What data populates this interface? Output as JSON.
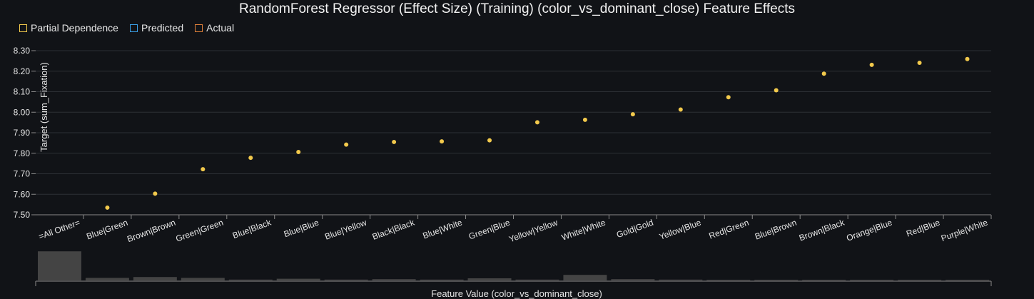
{
  "title": "RandomForest Regressor (Effect Size) (Training) (color_vs_dominant_close) Feature Effects",
  "legend": [
    {
      "label": "Partial Dependence",
      "color": "#f2c94c"
    },
    {
      "label": "Predicted",
      "color": "#3aa0e8"
    },
    {
      "label": "Actual",
      "color": "#e0803a"
    }
  ],
  "chart_data": {
    "type": "scatter",
    "title": "RandomForest Regressor (Effect Size) (Training) (color_vs_dominant_close) Feature Effects",
    "xlabel": "Feature Value (color_vs_dominant_close)",
    "ylabel": "Target (sum_Fixation)",
    "ylim": [
      7.5,
      8.3
    ],
    "yticks": [
      "7.50",
      "7.60",
      "7.70",
      "7.80",
      "7.90",
      "8.00",
      "8.10",
      "8.20",
      "8.30"
    ],
    "categories": [
      "=All Other=",
      "Blue|Green",
      "Brown|Brown",
      "Green|Green",
      "Blue|Black",
      "Blue|Blue",
      "Blue|Yellow",
      "Black|Black",
      "Blue|White",
      "Green|Blue",
      "Yellow|Yellow",
      "White|White",
      "Gold|Gold",
      "Yellow|Blue",
      "Red|Green",
      "Blue|Brown",
      "Brown|Black",
      "Orange|Blue",
      "Red|Blue",
      "Purple|White"
    ],
    "series": [
      {
        "name": "Partial Dependence",
        "color": "#f2c94c",
        "values": [
          null,
          7.535,
          7.603,
          7.722,
          7.778,
          7.806,
          7.842,
          7.855,
          7.858,
          7.863,
          7.951,
          7.963,
          7.99,
          8.013,
          8.073,
          8.107,
          8.188,
          8.231,
          8.241,
          8.259
        ]
      }
    ],
    "histogram": [
      0.34,
      0.03,
      0.04,
      0.03,
      0.01,
      0.02,
      0.01,
      0.015,
      0.01,
      0.025,
      0.01,
      0.065,
      0.015,
      0.01,
      0.005,
      0.005,
      0.005,
      0.005,
      0.005,
      0.005
    ],
    "grid": true,
    "legend_position": "top-left"
  }
}
